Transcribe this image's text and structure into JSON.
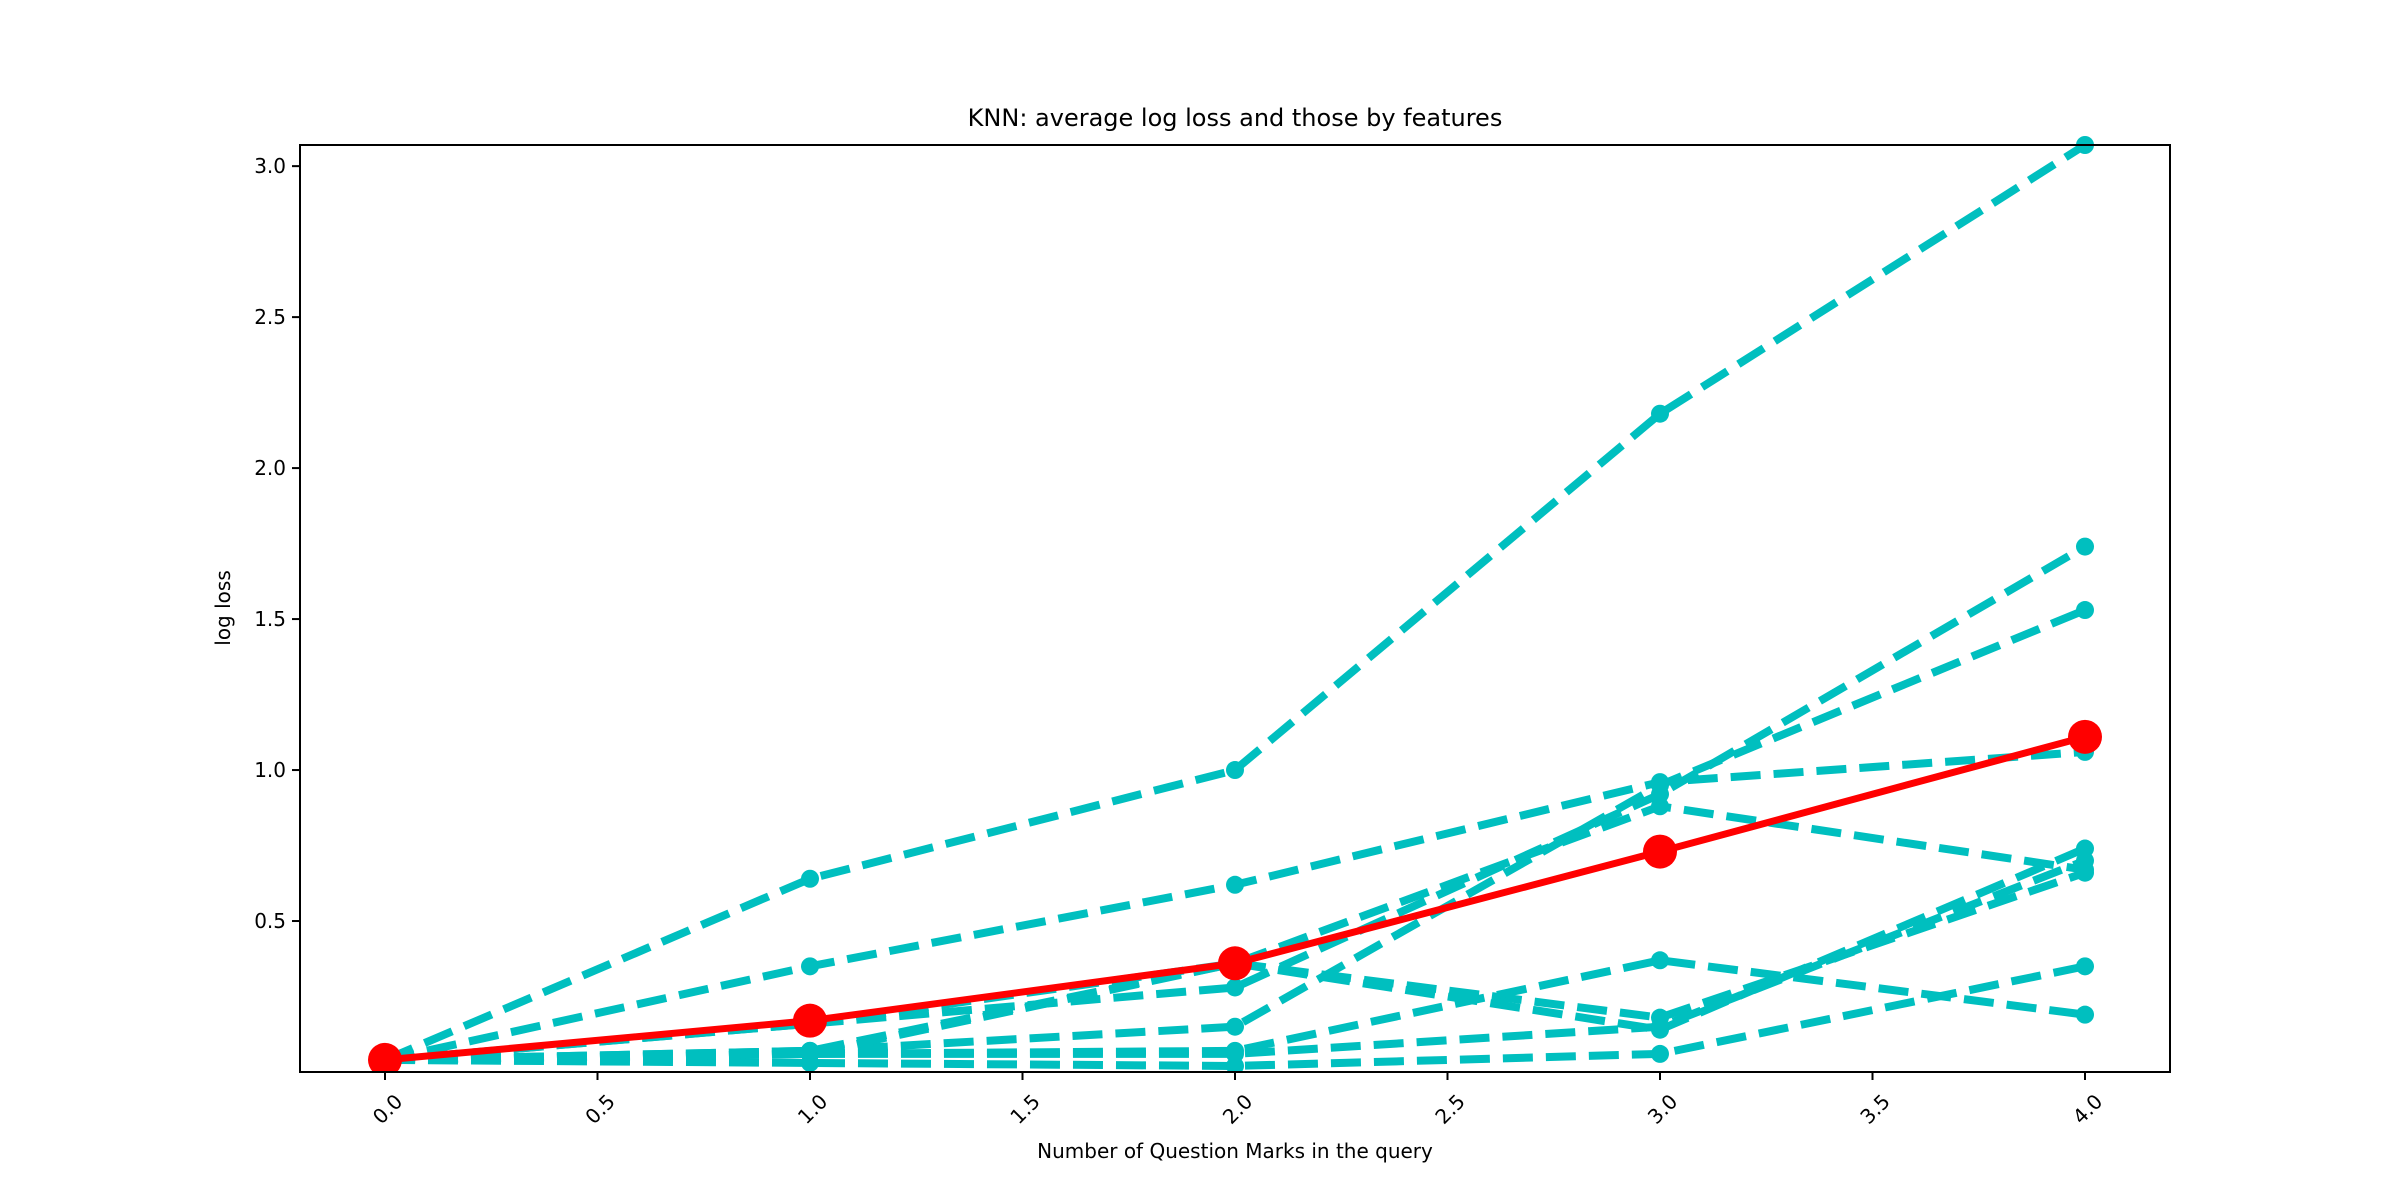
{
  "chart_data": {
    "type": "line",
    "title": "KNN: average log loss and those by features",
    "xlabel": "Number of Question Marks in the query",
    "ylabel": "log loss",
    "xlim": [
      -0.2,
      4.2
    ],
    "ylim": [
      0.0,
      3.07
    ],
    "xticks": [
      "0.0",
      "0.5",
      "1.0",
      "1.5",
      "2.0",
      "2.5",
      "3.0",
      "3.5",
      "4.0"
    ],
    "yticks": [
      "0.5",
      "1.0",
      "1.5",
      "2.0",
      "2.5",
      "3.0"
    ],
    "grid": false,
    "x": [
      0,
      1,
      2,
      3,
      4
    ],
    "average_color": "#ff0000",
    "feature_color": "#00bfbf",
    "average": {
      "values": [
        0.04,
        0.17,
        0.36,
        0.73,
        1.11
      ]
    },
    "series": [
      {
        "values": [
          0.04,
          0.64,
          1.0,
          2.18,
          3.07
        ]
      },
      {
        "values": [
          0.04,
          0.35,
          0.62,
          0.96,
          1.06
        ]
      },
      {
        "values": [
          0.04,
          0.16,
          0.36,
          0.88,
          0.67
        ]
      },
      {
        "values": [
          0.04,
          0.16,
          0.28,
          0.92,
          1.74
        ]
      },
      {
        "values": [
          0.04,
          0.07,
          0.15,
          0.95,
          1.53
        ]
      },
      {
        "values": [
          0.04,
          0.07,
          0.36,
          0.18,
          0.66
        ]
      },
      {
        "values": [
          0.04,
          0.06,
          0.36,
          0.14,
          0.74
        ]
      },
      {
        "values": [
          0.04,
          0.06,
          0.07,
          0.37,
          0.19
        ]
      },
      {
        "values": [
          0.04,
          0.03,
          0.02,
          0.06,
          0.35
        ]
      },
      {
        "values": [
          0.04,
          0.06,
          0.06,
          0.15,
          0.7
        ]
      }
    ]
  }
}
